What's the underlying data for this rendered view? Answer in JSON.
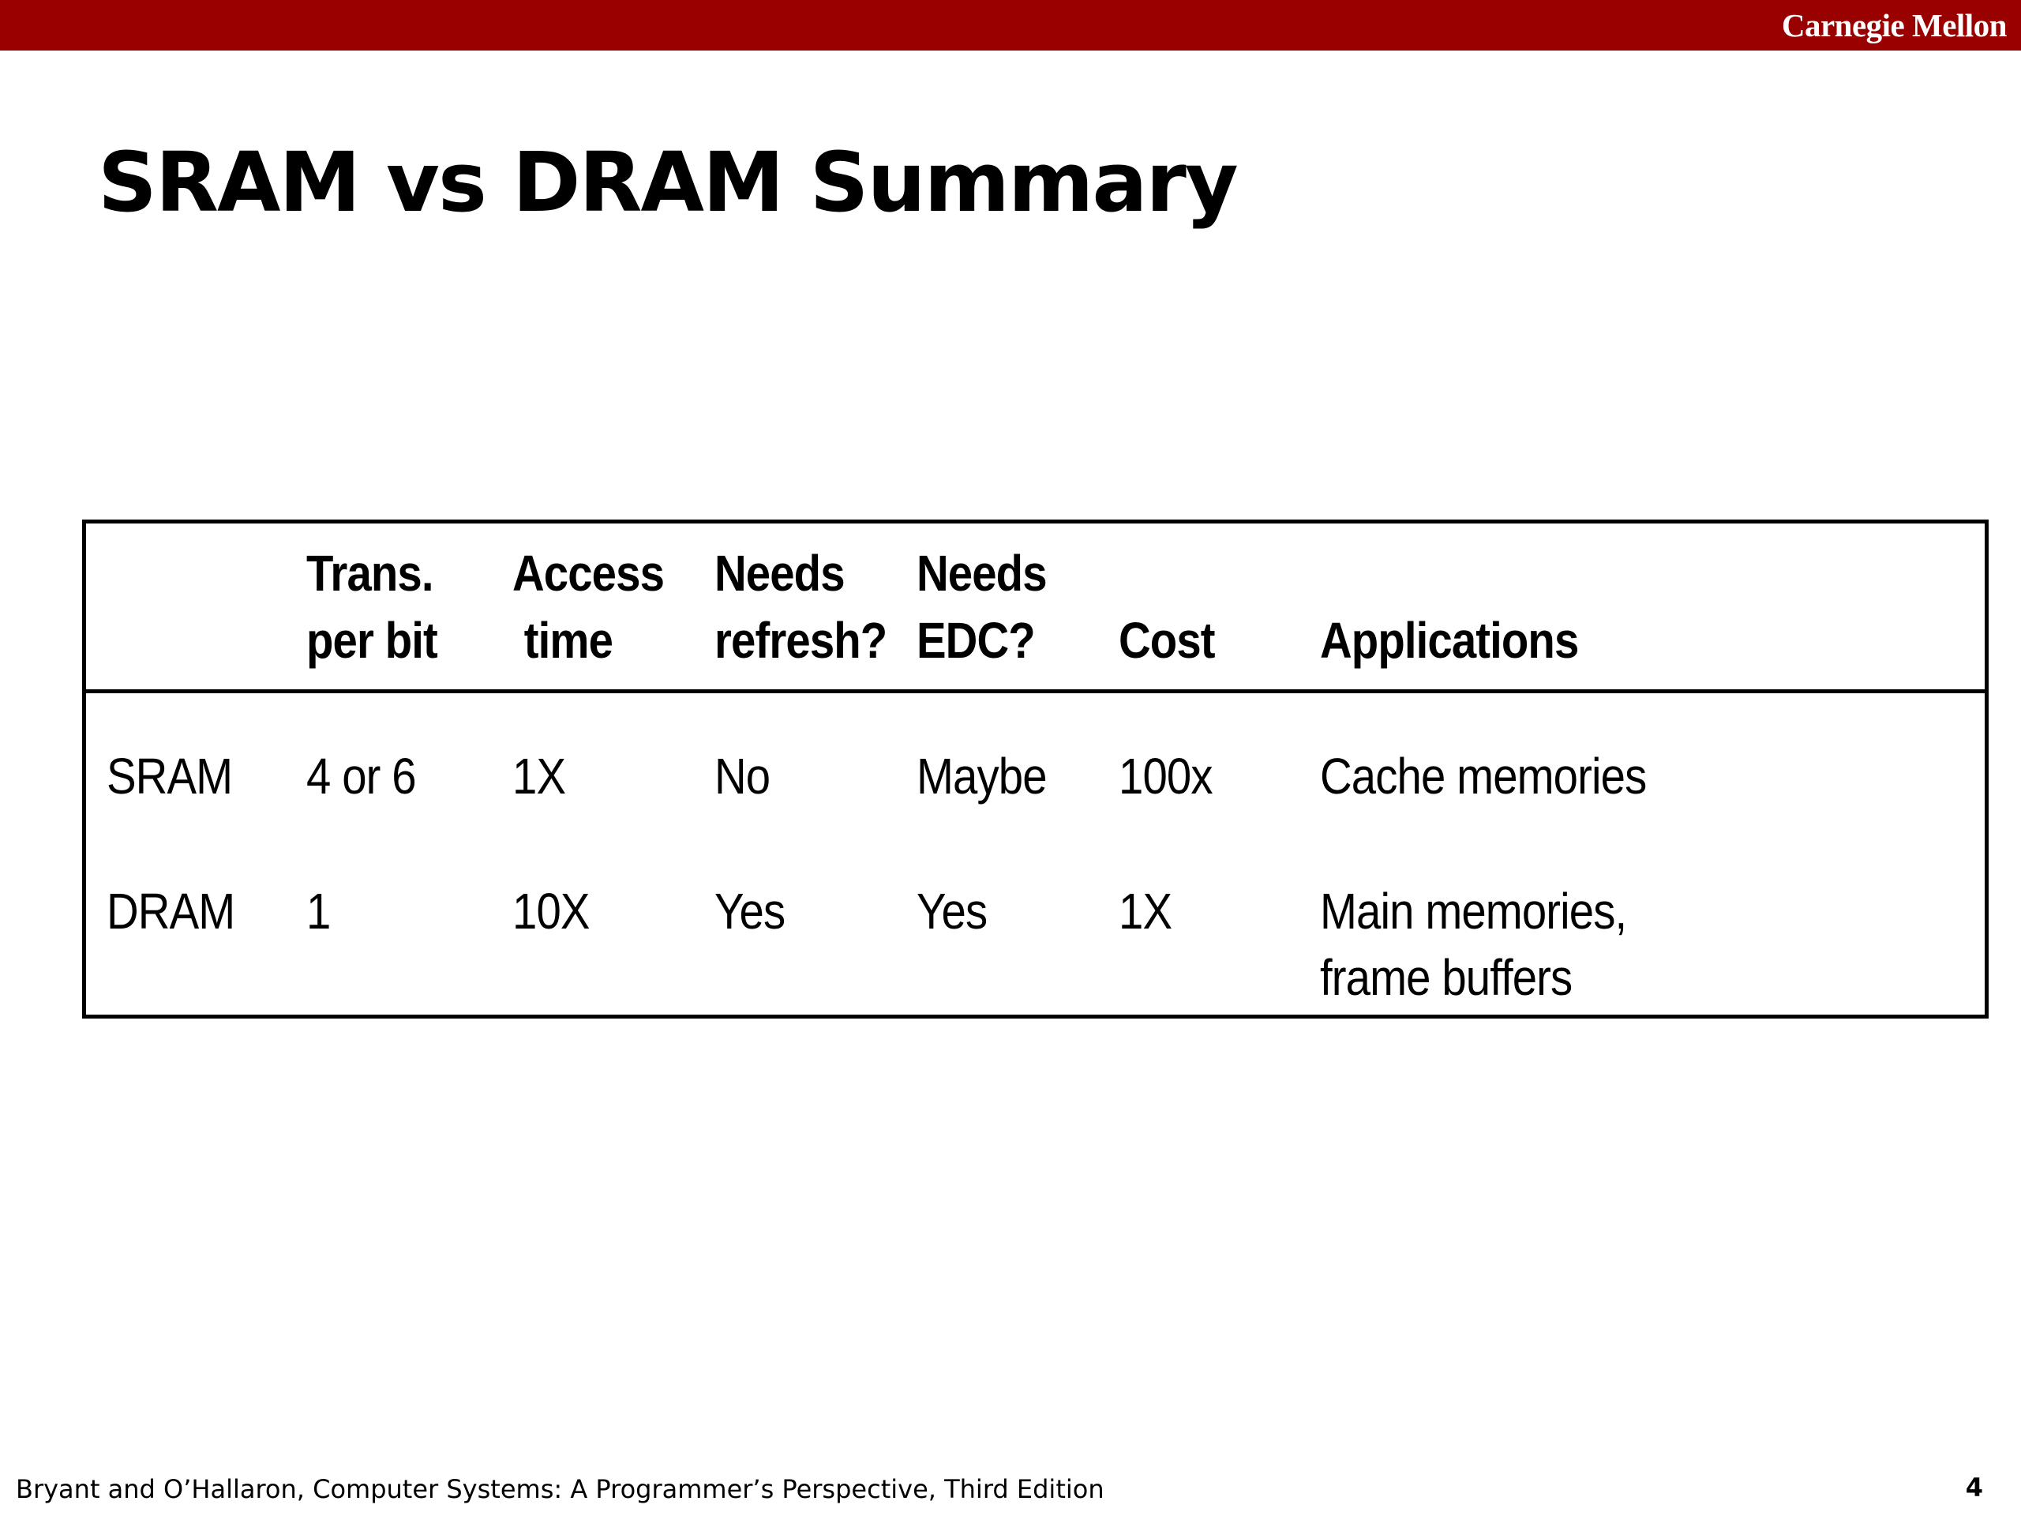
{
  "header": {
    "brand": "Carnegie Mellon",
    "bar_color": "#990000"
  },
  "slide": {
    "title": "SRAM vs DRAM Summary"
  },
  "table": {
    "headers": [
      {
        "line1": "",
        "line2": ""
      },
      {
        "line1": "Trans.",
        "line2": "per bit"
      },
      {
        "line1": "Access",
        "line2": " time"
      },
      {
        "line1": "Needs",
        "line2": "refresh?"
      },
      {
        "line1": "Needs",
        "line2": "EDC?"
      },
      {
        "line1": "",
        "line2": "Cost"
      },
      {
        "line1": "",
        "line2": "Applications"
      }
    ],
    "rows": [
      {
        "memory": "SRAM",
        "trans_per_bit": "4 or 6",
        "access_time": "1X",
        "needs_refresh": "No",
        "needs_edc": "Maybe",
        "cost": "100x",
        "applications": [
          "Cache memories"
        ]
      },
      {
        "memory": "DRAM",
        "trans_per_bit": "1",
        "access_time": "10X",
        "needs_refresh": "Yes",
        "needs_edc": "Yes",
        "cost": "1X",
        "applications": [
          "Main memories,",
          "frame buffers"
        ]
      }
    ]
  },
  "footer": {
    "citation": "Bryant and O’Hallaron, Computer Systems: A Programmer’s Perspective, Third Edition",
    "page_number": "4"
  }
}
